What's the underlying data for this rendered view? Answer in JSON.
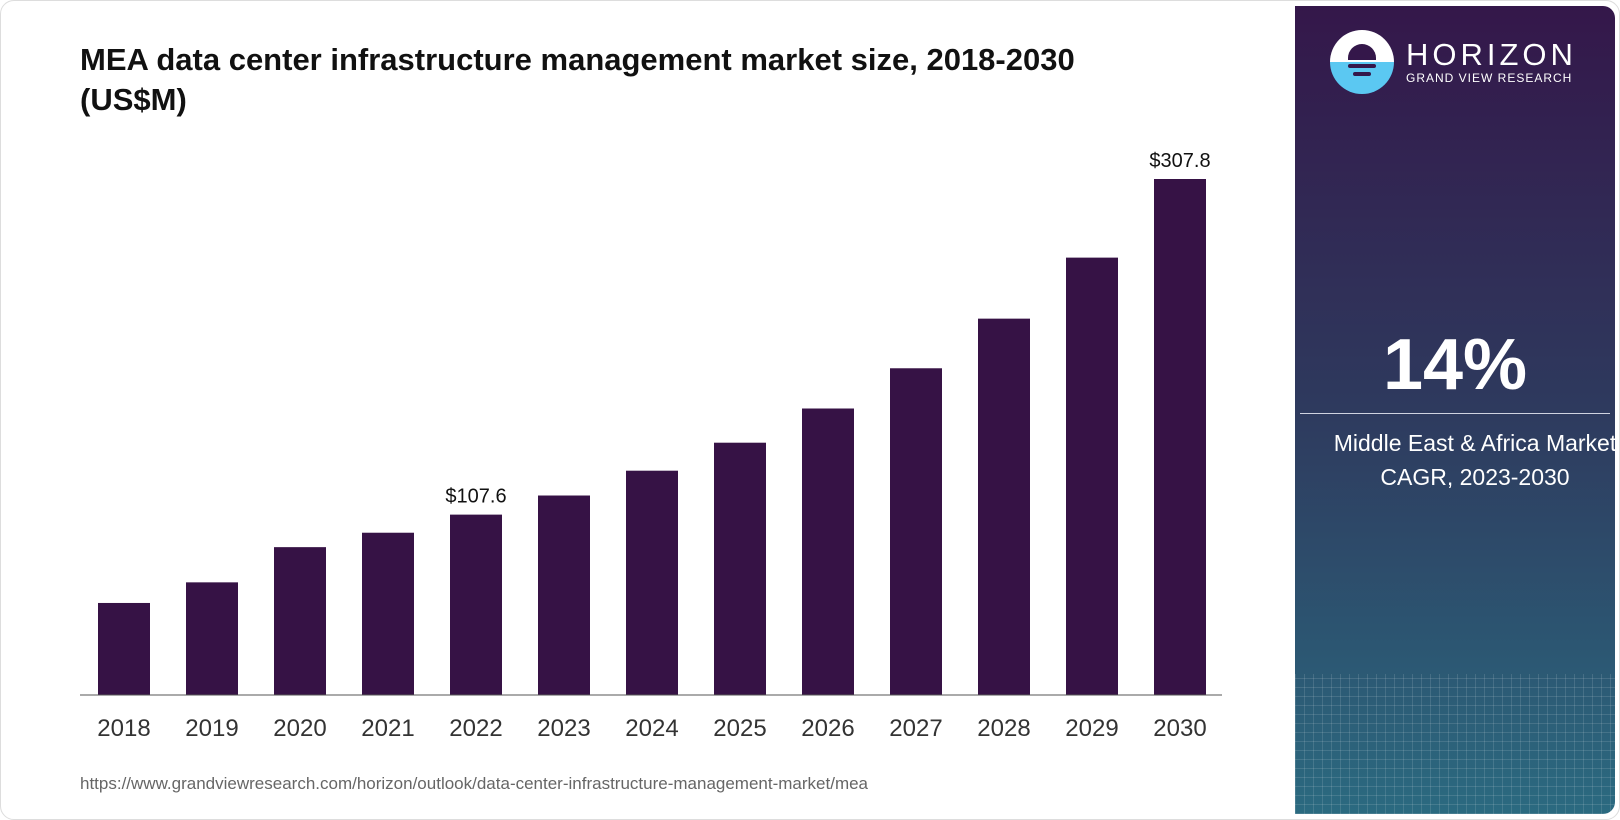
{
  "chart_data": {
    "type": "bar",
    "title": "MEA data center infrastructure management market size, 2018-2030 (US$M)",
    "categories": [
      "2018",
      "2019",
      "2020",
      "2021",
      "2022",
      "2023",
      "2024",
      "2025",
      "2026",
      "2027",
      "2028",
      "2029",
      "2030"
    ],
    "values": [
      54.9,
      67.2,
      88.2,
      96.8,
      107.6,
      119.0,
      133.8,
      150.5,
      170.9,
      194.9,
      224.5,
      260.9,
      307.8
    ],
    "data_labels": {
      "2022": "$107.6",
      "2030": "$307.8"
    },
    "xlabel": "",
    "ylabel": "",
    "ylim": [
      0,
      307.8
    ],
    "grid": false,
    "bar_color": "#361245"
  },
  "source_url": "https://www.grandviewresearch.com/horizon/outlook/data-center-infrastructure-management-market/mea",
  "panel": {
    "brand": "HORIZON",
    "brand_sub": "GRAND VIEW RESEARCH",
    "cagr": "14%",
    "line1": "Middle East & Africa Market",
    "line2": "CAGR, 2023-2030"
  }
}
